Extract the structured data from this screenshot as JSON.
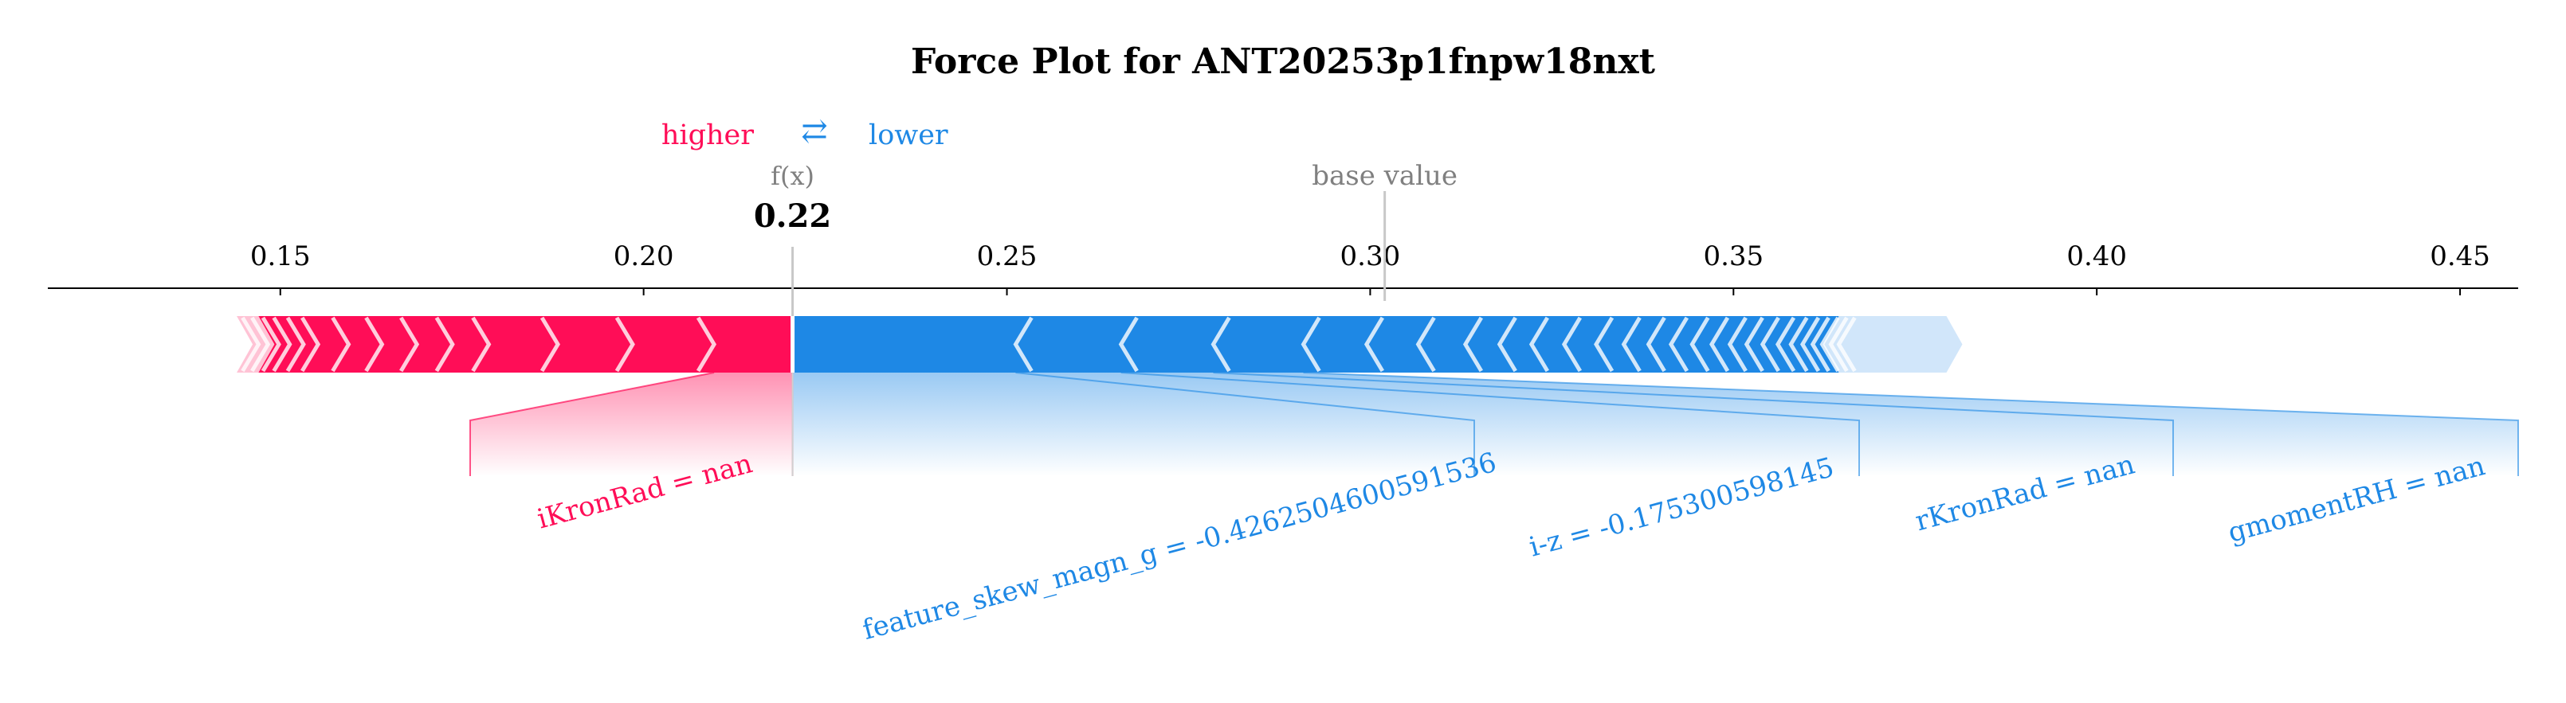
{
  "chart_data": {
    "type": "force",
    "title": "Force Plot for ANT20253p1fnpw18nxt",
    "legend": {
      "higher": "higher",
      "lower": "lower",
      "arrow_glyph": "⇄"
    },
    "output_label": "f(x)",
    "output_value_text": "0.22",
    "output_value": 0.2205,
    "base_value_label": "base value",
    "base_value": 0.302,
    "axis": {
      "ticks": [
        0.15,
        0.2,
        0.25,
        0.3,
        0.35,
        0.4,
        0.45
      ],
      "tick_labels": [
        "0.15",
        "0.20",
        "0.25",
        "0.30",
        "0.35",
        "0.40",
        "0.45"
      ],
      "xlim": [
        0.118,
        0.458
      ]
    },
    "colors": {
      "positive": "#ff0d57",
      "negative": "#1e88e5",
      "positive_light": "#ffc3d5",
      "negative_light": "#d1e6fa",
      "text": "#000000",
      "muted": "#808080"
    },
    "positive_span": [
      0.144,
      0.2205
    ],
    "negative_span": [
      0.2205,
      0.3815
    ],
    "positive_features": [
      {
        "label": "iKronRad = nan",
        "from": 0.2097,
        "to": 0.2205
      }
    ],
    "negative_features": [
      {
        "label": "feature_skew_magn_g = -0.4262504600591536",
        "from": 0.2205,
        "to": 0.2512
      },
      {
        "label": "i-z = -0.175300598145",
        "from": 0.2512,
        "to": 0.2657
      },
      {
        "label": "rKronRad = nan",
        "from": 0.2657,
        "to": 0.2784
      },
      {
        "label": "gmomentRH = nan",
        "from": 0.2784,
        "to": 0.2908
      }
    ],
    "positive_chevrons": [
      0.2097,
      0.1985,
      0.1882,
      0.1787,
      0.1737,
      0.1688,
      0.164,
      0.1594,
      0.1552,
      0.1532,
      0.1513,
      0.1498,
      0.1483,
      0.147
    ],
    "negative_chevrons": [
      0.2512,
      0.2657,
      0.2784,
      0.2908,
      0.2995,
      0.3066,
      0.3131,
      0.3178,
      0.3222,
      0.3267,
      0.3311,
      0.3349,
      0.3383,
      0.3414,
      0.3443,
      0.347,
      0.3495,
      0.3518,
      0.354,
      0.3561,
      0.3579,
      0.3595,
      0.3609,
      0.3622,
      0.3634,
      0.3645
    ]
  }
}
